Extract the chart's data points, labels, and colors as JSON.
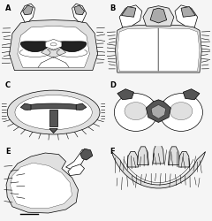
{
  "fig_width": 2.4,
  "fig_height": 2.5,
  "dpi": 100,
  "background_color": "#f5f5f5",
  "panels": [
    "A",
    "B",
    "C",
    "D",
    "E",
    "F"
  ],
  "label_fontsize": 6,
  "lw": 0.5
}
